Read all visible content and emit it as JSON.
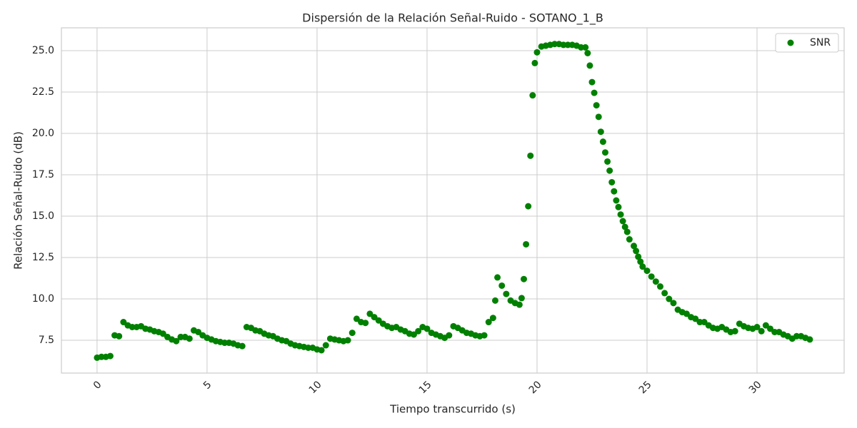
{
  "chart_data": {
    "type": "scatter",
    "title": "Dispersión de la Relación Señal-Ruido - SOTANO_1_B",
    "x_label": "Tiempo transcurrido (s)",
    "y_label": "Relación Señal-Ruido (dB)",
    "legend_position": "upper right",
    "grid": true,
    "xlim": [
      -1.62,
      33.96
    ],
    "ylim": [
      5.52,
      26.38
    ],
    "xticks": [
      0,
      5,
      10,
      15,
      20,
      25,
      30
    ],
    "yticks": [
      7.5,
      {
        "value": 10,
        "label": "10.0"
      },
      12.5,
      {
        "value": 15,
        "label": "15.0"
      },
      17.5,
      {
        "value": 20,
        "label": "20.0"
      },
      22.5,
      {
        "value": 25,
        "label": "25.0"
      }
    ],
    "series": [
      {
        "name": "SNR",
        "color": "#008000",
        "x": [
          0.0,
          0.2,
          0.4,
          0.6,
          0.8,
          1.0,
          1.2,
          1.4,
          1.6,
          1.8,
          2.0,
          2.2,
          2.4,
          2.6,
          2.8,
          3.0,
          3.2,
          3.4,
          3.6,
          3.8,
          4.0,
          4.2,
          4.4,
          4.6,
          4.8,
          5.0,
          5.2,
          5.4,
          5.6,
          5.8,
          6.0,
          6.2,
          6.4,
          6.6,
          6.8,
          7.0,
          7.2,
          7.4,
          7.6,
          7.8,
          8.0,
          8.2,
          8.4,
          8.6,
          8.8,
          9.0,
          9.2,
          9.4,
          9.6,
          9.8,
          10.0,
          10.2,
          10.4,
          10.6,
          10.8,
          11.0,
          11.2,
          11.4,
          11.6,
          11.8,
          12.0,
          12.2,
          12.4,
          12.6,
          12.8,
          13.0,
          13.2,
          13.4,
          13.6,
          13.8,
          14.0,
          14.2,
          14.4,
          14.6,
          14.8,
          15.0,
          15.2,
          15.4,
          15.6,
          15.8,
          16.0,
          16.2,
          16.4,
          16.6,
          16.8,
          17.0,
          17.2,
          17.4,
          17.6,
          17.8,
          18.0,
          18.1,
          18.2,
          18.4,
          18.6,
          18.8,
          19.0,
          19.2,
          19.3,
          19.4,
          19.5,
          19.6,
          19.7,
          19.8,
          19.9,
          20.0,
          20.2,
          20.4,
          20.6,
          20.8,
          21.0,
          21.2,
          21.4,
          21.6,
          21.8,
          22.0,
          22.2,
          22.3,
          22.4,
          22.5,
          22.6,
          22.7,
          22.8,
          22.9,
          23.0,
          23.1,
          23.2,
          23.3,
          23.4,
          23.5,
          23.6,
          23.7,
          23.8,
          23.9,
          24.0,
          24.1,
          24.2,
          24.4,
          24.5,
          24.6,
          24.7,
          24.8,
          25.0,
          25.2,
          25.4,
          25.6,
          25.8,
          26.0,
          26.2,
          26.4,
          26.6,
          26.8,
          27.0,
          27.2,
          27.4,
          27.6,
          27.8,
          28.0,
          28.2,
          28.4,
          28.6,
          28.8,
          29.0,
          29.2,
          29.4,
          29.6,
          29.8,
          30.0,
          30.2,
          30.4,
          30.6,
          30.8,
          31.0,
          31.2,
          31.4,
          31.6,
          31.8,
          32.0,
          32.2,
          32.4
        ],
        "values": [
          6.45,
          6.5,
          6.5,
          6.55,
          7.8,
          7.75,
          8.6,
          8.4,
          8.3,
          8.3,
          8.35,
          8.2,
          8.15,
          8.05,
          8.0,
          7.9,
          7.7,
          7.55,
          7.45,
          7.7,
          7.7,
          7.6,
          8.1,
          8.0,
          7.8,
          7.65,
          7.55,
          7.45,
          7.4,
          7.35,
          7.35,
          7.3,
          7.2,
          7.15,
          8.3,
          8.25,
          8.1,
          8.05,
          7.9,
          7.8,
          7.75,
          7.6,
          7.5,
          7.45,
          7.3,
          7.2,
          7.15,
          7.1,
          7.05,
          7.05,
          6.95,
          6.9,
          7.2,
          7.6,
          7.55,
          7.5,
          7.45,
          7.5,
          7.95,
          8.8,
          8.6,
          8.55,
          9.1,
          8.9,
          8.7,
          8.5,
          8.35,
          8.25,
          8.3,
          8.15,
          8.05,
          7.9,
          7.85,
          8.05,
          8.3,
          8.2,
          7.95,
          7.85,
          7.75,
          7.65,
          7.8,
          8.35,
          8.25,
          8.1,
          7.95,
          7.9,
          7.8,
          7.75,
          7.8,
          8.6,
          8.85,
          9.9,
          11.3,
          10.8,
          10.3,
          9.9,
          9.75,
          9.65,
          10.05,
          11.2,
          13.3,
          15.6,
          18.65,
          22.3,
          24.25,
          24.9,
          25.25,
          25.3,
          25.35,
          25.4,
          25.4,
          25.35,
          25.35,
          25.35,
          25.3,
          25.2,
          25.2,
          24.85,
          24.1,
          23.1,
          22.45,
          21.7,
          21.0,
          20.1,
          19.5,
          18.85,
          18.3,
          17.75,
          17.05,
          16.5,
          15.95,
          15.55,
          15.1,
          14.7,
          14.35,
          14.05,
          13.6,
          13.2,
          12.9,
          12.55,
          12.25,
          11.95,
          11.7,
          11.35,
          11.05,
          10.75,
          10.35,
          10.0,
          9.75,
          9.35,
          9.2,
          9.1,
          8.9,
          8.8,
          8.6,
          8.6,
          8.4,
          8.25,
          8.2,
          8.3,
          8.15,
          8.0,
          8.05,
          8.5,
          8.35,
          8.25,
          8.2,
          8.3,
          8.05,
          8.4,
          8.2,
          8.0,
          8.0,
          7.85,
          7.75,
          7.6,
          7.75,
          7.75,
          7.65,
          7.55
        ]
      }
    ]
  }
}
